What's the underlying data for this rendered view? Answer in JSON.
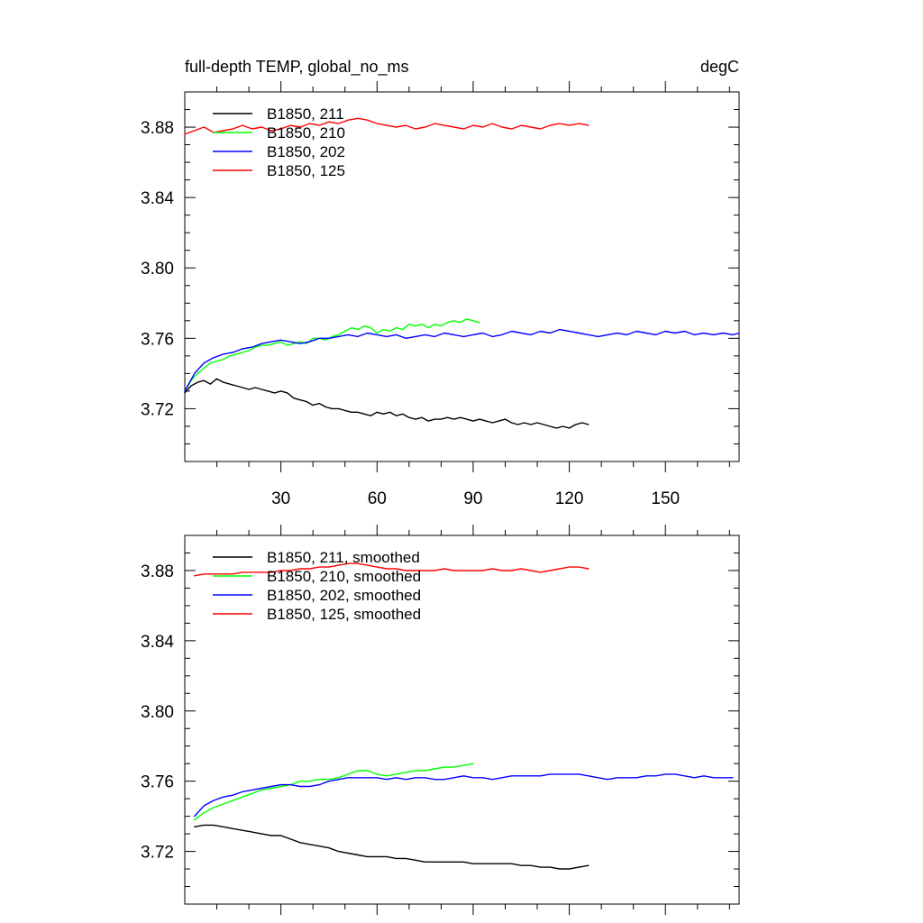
{
  "chart_data": [
    {
      "type": "line",
      "title_left": "full-depth TEMP, global_no_ms",
      "title_right": "degC",
      "xlabel": "",
      "ylabel": "",
      "xlim": [
        0,
        173
      ],
      "ylim": [
        3.69,
        3.9
      ],
      "xticks": [
        30,
        60,
        90,
        120,
        150
      ],
      "xtick_labels": [
        "30",
        "60",
        "90",
        "120",
        "150"
      ],
      "yticks": [
        3.72,
        3.76,
        3.8,
        3.84,
        3.88
      ],
      "ytick_labels": [
        "3.72",
        "3.76",
        "3.80",
        "3.84",
        "3.88"
      ],
      "legend_position": "top-left",
      "series": [
        {
          "name": "B1850, 211",
          "color": "#000000",
          "x": [
            0,
            2,
            4,
            6,
            8,
            10,
            12,
            14,
            16,
            18,
            20,
            22,
            24,
            26,
            28,
            30,
            32,
            34,
            36,
            38,
            40,
            42,
            44,
            46,
            48,
            50,
            52,
            54,
            56,
            58,
            60,
            62,
            64,
            66,
            68,
            70,
            72,
            74,
            76,
            78,
            80,
            82,
            84,
            86,
            88,
            90,
            92,
            94,
            96,
            98,
            100,
            102,
            104,
            106,
            108,
            110,
            112,
            114,
            116,
            118,
            120,
            122,
            124,
            126
          ],
          "y": [
            3.729,
            3.733,
            3.735,
            3.736,
            3.734,
            3.737,
            3.735,
            3.734,
            3.733,
            3.732,
            3.731,
            3.732,
            3.731,
            3.73,
            3.729,
            3.73,
            3.729,
            3.726,
            3.725,
            3.724,
            3.722,
            3.723,
            3.721,
            3.72,
            3.72,
            3.719,
            3.718,
            3.718,
            3.717,
            3.716,
            3.718,
            3.717,
            3.718,
            3.716,
            3.717,
            3.715,
            3.714,
            3.715,
            3.713,
            3.714,
            3.714,
            3.715,
            3.714,
            3.715,
            3.714,
            3.713,
            3.714,
            3.713,
            3.712,
            3.713,
            3.714,
            3.712,
            3.711,
            3.712,
            3.711,
            3.712,
            3.711,
            3.71,
            3.709,
            3.71,
            3.709,
            3.711,
            3.712,
            3.711
          ]
        },
        {
          "name": "B1850, 210",
          "color": "#00ff00",
          "x": [
            0,
            2,
            4,
            6,
            8,
            10,
            12,
            14,
            16,
            18,
            20,
            22,
            24,
            26,
            28,
            30,
            32,
            34,
            36,
            38,
            40,
            42,
            44,
            46,
            48,
            50,
            52,
            54,
            56,
            58,
            60,
            62,
            64,
            66,
            68,
            70,
            72,
            74,
            76,
            78,
            80,
            82,
            84,
            86,
            88,
            90,
            92
          ],
          "y": [
            3.73,
            3.736,
            3.74,
            3.743,
            3.746,
            3.747,
            3.748,
            3.75,
            3.751,
            3.752,
            3.753,
            3.755,
            3.756,
            3.756,
            3.757,
            3.758,
            3.756,
            3.757,
            3.758,
            3.757,
            3.76,
            3.76,
            3.759,
            3.761,
            3.762,
            3.764,
            3.766,
            3.765,
            3.767,
            3.766,
            3.763,
            3.765,
            3.764,
            3.766,
            3.765,
            3.768,
            3.767,
            3.768,
            3.766,
            3.768,
            3.767,
            3.769,
            3.77,
            3.769,
            3.771,
            3.77,
            3.769
          ]
        },
        {
          "name": "B1850, 202",
          "color": "#0000ff",
          "x": [
            0,
            3,
            6,
            9,
            12,
            15,
            18,
            21,
            24,
            27,
            30,
            33,
            36,
            39,
            42,
            45,
            48,
            51,
            54,
            57,
            60,
            63,
            66,
            69,
            72,
            75,
            78,
            81,
            84,
            87,
            90,
            93,
            96,
            99,
            102,
            105,
            108,
            111,
            114,
            117,
            120,
            123,
            126,
            129,
            132,
            135,
            138,
            141,
            144,
            147,
            150,
            153,
            156,
            159,
            162,
            165,
            168,
            171,
            173
          ],
          "y": [
            3.73,
            3.74,
            3.746,
            3.749,
            3.751,
            3.752,
            3.754,
            3.755,
            3.757,
            3.758,
            3.759,
            3.758,
            3.757,
            3.758,
            3.76,
            3.76,
            3.761,
            3.762,
            3.761,
            3.763,
            3.762,
            3.761,
            3.762,
            3.76,
            3.761,
            3.762,
            3.761,
            3.763,
            3.762,
            3.761,
            3.762,
            3.763,
            3.761,
            3.762,
            3.764,
            3.763,
            3.762,
            3.764,
            3.763,
            3.765,
            3.764,
            3.763,
            3.762,
            3.761,
            3.762,
            3.763,
            3.762,
            3.764,
            3.763,
            3.762,
            3.764,
            3.763,
            3.764,
            3.762,
            3.763,
            3.762,
            3.763,
            3.762,
            3.763
          ]
        },
        {
          "name": "B1850, 125",
          "color": "#ff0000",
          "x": [
            0,
            3,
            6,
            9,
            12,
            15,
            18,
            21,
            24,
            27,
            30,
            33,
            36,
            39,
            42,
            45,
            48,
            51,
            54,
            57,
            60,
            63,
            66,
            69,
            72,
            75,
            78,
            81,
            84,
            87,
            90,
            93,
            96,
            99,
            102,
            105,
            108,
            111,
            114,
            117,
            120,
            123,
            126
          ],
          "y": [
            3.876,
            3.878,
            3.88,
            3.877,
            3.878,
            3.879,
            3.881,
            3.879,
            3.88,
            3.878,
            3.879,
            3.881,
            3.88,
            3.882,
            3.881,
            3.883,
            3.882,
            3.884,
            3.885,
            3.884,
            3.882,
            3.881,
            3.88,
            3.881,
            3.879,
            3.88,
            3.882,
            3.881,
            3.88,
            3.879,
            3.881,
            3.88,
            3.882,
            3.88,
            3.879,
            3.881,
            3.88,
            3.879,
            3.881,
            3.882,
            3.881,
            3.882,
            3.881
          ]
        }
      ]
    },
    {
      "type": "line",
      "title_left": "",
      "title_right": "",
      "xlabel": "",
      "ylabel": "",
      "xlim": [
        0,
        173
      ],
      "ylim": [
        3.69,
        3.9
      ],
      "xticks": [
        30,
        60,
        90,
        120,
        150
      ],
      "xtick_labels": [],
      "yticks": [
        3.72,
        3.76,
        3.8,
        3.84,
        3.88
      ],
      "ytick_labels": [
        "3.72",
        "3.76",
        "3.80",
        "3.84",
        "3.88"
      ],
      "legend_position": "top-left",
      "series": [
        {
          "name": "B1850, 211, smoothed",
          "color": "#000000",
          "x": [
            3,
            6,
            9,
            12,
            15,
            18,
            21,
            24,
            27,
            30,
            33,
            36,
            39,
            42,
            45,
            48,
            51,
            54,
            57,
            60,
            63,
            66,
            69,
            72,
            75,
            78,
            81,
            84,
            87,
            90,
            93,
            96,
            99,
            102,
            105,
            108,
            111,
            114,
            117,
            120,
            123,
            126
          ],
          "y": [
            3.734,
            3.735,
            3.735,
            3.734,
            3.733,
            3.732,
            3.731,
            3.73,
            3.729,
            3.729,
            3.727,
            3.725,
            3.724,
            3.723,
            3.722,
            3.72,
            3.719,
            3.718,
            3.717,
            3.717,
            3.717,
            3.716,
            3.716,
            3.715,
            3.714,
            3.714,
            3.714,
            3.714,
            3.714,
            3.713,
            3.713,
            3.713,
            3.713,
            3.713,
            3.712,
            3.712,
            3.711,
            3.711,
            3.71,
            3.71,
            3.711,
            3.712
          ]
        },
        {
          "name": "B1850, 210, smoothed",
          "color": "#00ff00",
          "x": [
            3,
            6,
            9,
            12,
            15,
            18,
            21,
            24,
            27,
            30,
            33,
            36,
            39,
            42,
            45,
            48,
            51,
            54,
            57,
            60,
            63,
            66,
            69,
            72,
            75,
            78,
            81,
            84,
            87,
            90
          ],
          "y": [
            3.738,
            3.742,
            3.745,
            3.747,
            3.749,
            3.751,
            3.753,
            3.755,
            3.756,
            3.757,
            3.758,
            3.76,
            3.76,
            3.761,
            3.761,
            3.762,
            3.764,
            3.766,
            3.766,
            3.764,
            3.763,
            3.764,
            3.765,
            3.766,
            3.766,
            3.767,
            3.768,
            3.768,
            3.769,
            3.77
          ]
        },
        {
          "name": "B1850, 202, smoothed",
          "color": "#0000ff",
          "x": [
            3,
            6,
            9,
            12,
            15,
            18,
            21,
            24,
            27,
            30,
            33,
            36,
            39,
            42,
            45,
            48,
            51,
            54,
            57,
            60,
            63,
            66,
            69,
            72,
            75,
            78,
            81,
            84,
            87,
            90,
            93,
            96,
            99,
            102,
            105,
            108,
            111,
            114,
            117,
            120,
            123,
            126,
            129,
            132,
            135,
            138,
            141,
            144,
            147,
            150,
            153,
            156,
            159,
            162,
            165,
            168,
            171
          ],
          "y": [
            3.74,
            3.746,
            3.749,
            3.751,
            3.752,
            3.754,
            3.755,
            3.756,
            3.757,
            3.758,
            3.758,
            3.757,
            3.757,
            3.758,
            3.76,
            3.761,
            3.762,
            3.762,
            3.762,
            3.762,
            3.761,
            3.762,
            3.761,
            3.762,
            3.762,
            3.761,
            3.761,
            3.762,
            3.763,
            3.762,
            3.762,
            3.761,
            3.762,
            3.763,
            3.763,
            3.763,
            3.763,
            3.764,
            3.764,
            3.764,
            3.764,
            3.763,
            3.762,
            3.761,
            3.762,
            3.762,
            3.762,
            3.763,
            3.763,
            3.764,
            3.764,
            3.763,
            3.762,
            3.763,
            3.762,
            3.762,
            3.762
          ]
        },
        {
          "name": "B1850, 125, smoothed",
          "color": "#ff0000",
          "x": [
            3,
            6,
            9,
            12,
            15,
            18,
            21,
            24,
            27,
            30,
            33,
            36,
            39,
            42,
            45,
            48,
            51,
            54,
            57,
            60,
            63,
            66,
            69,
            72,
            75,
            78,
            81,
            84,
            87,
            90,
            93,
            96,
            99,
            102,
            105,
            108,
            111,
            114,
            117,
            120,
            123,
            126
          ],
          "y": [
            3.877,
            3.878,
            3.878,
            3.878,
            3.878,
            3.879,
            3.879,
            3.879,
            3.879,
            3.88,
            3.88,
            3.881,
            3.881,
            3.882,
            3.882,
            3.883,
            3.884,
            3.884,
            3.883,
            3.882,
            3.881,
            3.881,
            3.88,
            3.88,
            3.88,
            3.88,
            3.881,
            3.88,
            3.88,
            3.88,
            3.88,
            3.881,
            3.88,
            3.88,
            3.881,
            3.88,
            3.879,
            3.88,
            3.881,
            3.882,
            3.882,
            3.881
          ]
        }
      ]
    }
  ]
}
